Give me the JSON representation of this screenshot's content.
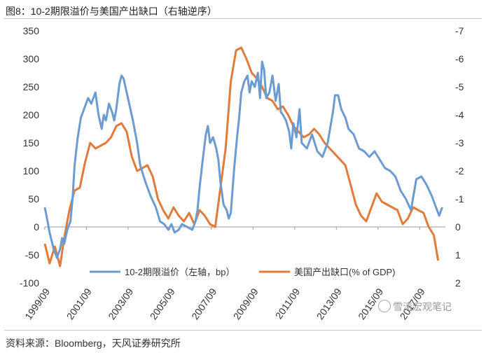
{
  "title": "图8：10-2期限溢价与美国产出缺口（右轴逆序）",
  "source": "资料来源：Bloomberg，天风证券研究所",
  "watermark": "雪涛宏观笔记",
  "chart_data": {
    "type": "line",
    "x_ticks": [
      "1999/09",
      "2001/09",
      "2003/09",
      "2005/09",
      "2007/09",
      "2009/09",
      "2011/09",
      "2013/09",
      "2015/09",
      "2017/09"
    ],
    "xlim": [
      1999.67,
      2018.9
    ],
    "left_axis": {
      "ylim": [
        -100,
        350
      ],
      "ticks": [
        350,
        300,
        250,
        200,
        150,
        100,
        50,
        0,
        -50,
        -100
      ]
    },
    "right_axis": {
      "ylim": [
        -7,
        2
      ],
      "inverted": true,
      "ticks": [
        -7,
        -6,
        -5,
        -4,
        -3,
        -2,
        -1,
        0,
        1,
        2
      ]
    },
    "colors": {
      "term_premium": "#6b9bd1",
      "output_gap": "#e07b39"
    },
    "series": [
      {
        "name": "10-2期限溢价（左轴，bp）",
        "axis": "left",
        "x": [
          1999.67,
          1999.8,
          1999.9,
          2000.0,
          2000.1,
          2000.25,
          2000.4,
          2000.5,
          2000.6,
          2000.75,
          2000.9,
          2001.0,
          2001.1,
          2001.25,
          2001.4,
          2001.6,
          2001.75,
          2001.9,
          2002.1,
          2002.25,
          2002.4,
          2002.5,
          2002.6,
          2002.75,
          2002.9,
          2003.0,
          2003.1,
          2003.25,
          2003.35,
          2003.45,
          2003.6,
          2003.75,
          2003.9,
          2004.1,
          2004.25,
          2004.5,
          2004.75,
          2005.0,
          2005.2,
          2005.4,
          2005.6,
          2005.75,
          2005.9,
          2006.1,
          2006.25,
          2006.5,
          2006.75,
          2006.9,
          2007.0,
          2007.1,
          2007.25,
          2007.4,
          2007.5,
          2007.6,
          2007.75,
          2007.9,
          2008.0,
          2008.1,
          2008.25,
          2008.4,
          2008.5,
          2008.6,
          2008.75,
          2008.9,
          2009.0,
          2009.1,
          2009.25,
          2009.4,
          2009.5,
          2009.6,
          2009.75,
          2009.9,
          2010.0,
          2010.1,
          2010.2,
          2010.3,
          2010.45,
          2010.6,
          2010.75,
          2010.9,
          2011.0,
          2011.1,
          2011.25,
          2011.4,
          2011.5,
          2011.6,
          2011.75,
          2011.9,
          2012.0,
          2012.25,
          2012.5,
          2012.75,
          2013.0,
          2013.25,
          2013.5,
          2013.6,
          2013.75,
          2013.9,
          2014.1,
          2014.25,
          2014.5,
          2014.75,
          2015.0,
          2015.25,
          2015.5,
          2015.75,
          2016.0,
          2016.25,
          2016.5,
          2016.75,
          2017.0,
          2017.25,
          2017.5,
          2017.75,
          2018.0,
          2018.25,
          2018.4,
          2018.6,
          2018.75
        ],
        "values": [
          35,
          10,
          -10,
          -25,
          -40,
          -55,
          -40,
          -20,
          -30,
          -5,
          10,
          50,
          110,
          160,
          195,
          215,
          230,
          220,
          240,
          200,
          175,
          200,
          190,
          220,
          205,
          190,
          210,
          255,
          270,
          265,
          240,
          215,
          190,
          150,
          110,
          80,
          55,
          35,
          10,
          5,
          -5,
          5,
          -10,
          -5,
          5,
          0,
          -5,
          10,
          30,
          70,
          120,
          165,
          180,
          150,
          160,
          140,
          120,
          80,
          40,
          30,
          15,
          25,
          100,
          160,
          195,
          240,
          260,
          270,
          240,
          260,
          250,
          275,
          230,
          295,
          280,
          230,
          240,
          270,
          225,
          255,
          205,
          200,
          190,
          170,
          140,
          185,
          160,
          210,
          150,
          140,
          165,
          135,
          125,
          150,
          205,
          235,
          235,
          210,
          195,
          175,
          165,
          140,
          135,
          125,
          135,
          120,
          105,
          100,
          90,
          65,
          50,
          30,
          85,
          90,
          75,
          55,
          40,
          20,
          35
        ]
      },
      {
        "name": "美国产出缺口(% of GDP)",
        "axis": "right",
        "x": [
          1999.67,
          1999.9,
          2000.15,
          2000.4,
          2000.6,
          2000.85,
          2001.1,
          2001.35,
          2001.6,
          2001.85,
          2002.1,
          2002.35,
          2002.6,
          2002.85,
          2003.1,
          2003.35,
          2003.6,
          2003.85,
          2004.1,
          2004.35,
          2004.6,
          2004.85,
          2005.1,
          2005.35,
          2005.6,
          2005.85,
          2006.1,
          2006.35,
          2006.6,
          2006.85,
          2007.1,
          2007.35,
          2007.6,
          2007.85,
          2008.1,
          2008.35,
          2008.6,
          2008.85,
          2009.1,
          2009.35,
          2009.6,
          2009.85,
          2010.1,
          2010.35,
          2010.6,
          2010.85,
          2011.1,
          2011.35,
          2011.6,
          2011.85,
          2012.1,
          2012.35,
          2012.6,
          2012.85,
          2013.1,
          2013.35,
          2013.6,
          2013.85,
          2014.1,
          2014.35,
          2014.6,
          2014.85,
          2015.1,
          2015.35,
          2015.6,
          2015.85,
          2016.1,
          2016.35,
          2016.6,
          2016.85,
          2017.1,
          2017.35,
          2017.6,
          2017.85,
          2018.1,
          2018.35,
          2018.55
        ],
        "values": [
          0.6,
          1.3,
          0.7,
          1.4,
          0.4,
          -0.6,
          -1.3,
          -1.4,
          -2.3,
          -3.0,
          -2.8,
          -2.9,
          -3.0,
          -3.2,
          -3.6,
          -3.7,
          -3.4,
          -2.5,
          -2.0,
          -2.1,
          -2.2,
          -1.8,
          -1.0,
          -0.6,
          -0.3,
          -0.7,
          -0.4,
          -0.2,
          -0.5,
          -0.1,
          -0.6,
          -0.4,
          -0.1,
          0.0,
          -1.4,
          -2.8,
          -5.2,
          -6.3,
          -6.4,
          -6.0,
          -5.5,
          -5.3,
          -5.0,
          -4.6,
          -4.5,
          -4.2,
          -4.3,
          -4.0,
          -3.6,
          -3.4,
          -3.2,
          -3.3,
          -3.5,
          -3.3,
          -3.0,
          -2.8,
          -2.6,
          -2.4,
          -2.2,
          -1.5,
          -0.8,
          -0.4,
          -0.2,
          -0.7,
          -1.2,
          -0.9,
          -0.8,
          -0.7,
          -0.6,
          -0.1,
          -0.3,
          -0.7,
          -0.6,
          -0.5,
          0.0,
          0.3,
          1.2
        ]
      }
    ]
  }
}
